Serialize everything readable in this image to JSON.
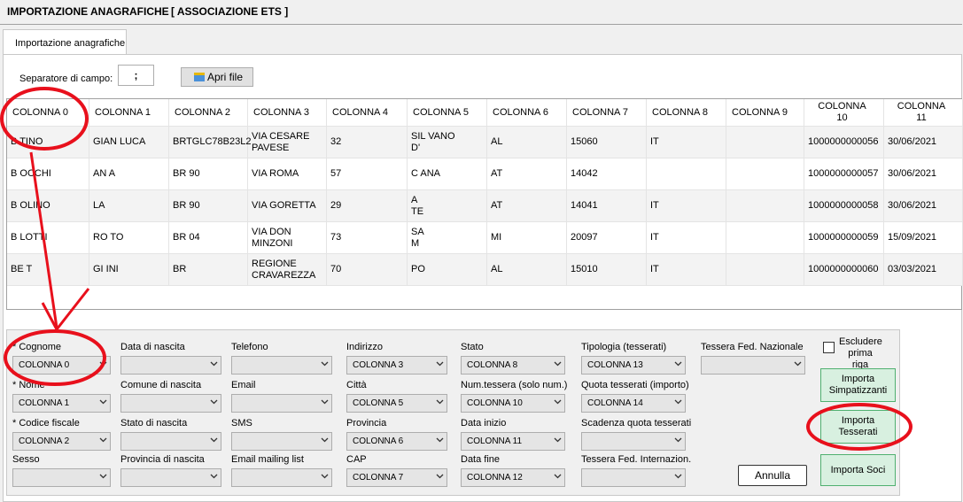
{
  "window": {
    "title": "IMPORTAZIONE ANAGRAFICHE",
    "subtitle": "[ ASSOCIAZIONE ETS ]"
  },
  "tab": {
    "label": "Importazione anagrafiche"
  },
  "toolbar": {
    "separator_label": "Separatore di campo:",
    "separator_value": ";",
    "open_file_label": "Apri file"
  },
  "grid": {
    "columns": [
      "COLONNA 0",
      "COLONNA 1",
      "COLONNA 2",
      "COLONNA 3",
      "COLONNA 4",
      "COLONNA 5",
      "COLONNA 6",
      "COLONNA 7",
      "COLONNA 8",
      "COLONNA 9",
      "COLONNA\n10",
      "COLONNA\n11"
    ],
    "rows": [
      [
        "B  TINO",
        "GIAN   LUCA",
        "BRTGLC78B23L2",
        "VIA CESARE\nPAVESE",
        "32",
        "SIL VANO\nD'",
        "AL",
        "15060",
        "IT",
        "",
        "1000000000056",
        "30/06/2021"
      ],
      [
        "B    OCCHI",
        "AN    A",
        "BR             90",
        "VIA ROMA",
        "57",
        "C          ANA",
        "AT",
        "14042",
        "",
        "",
        "1000000000057",
        "30/06/2021"
      ],
      [
        "B    OLINO",
        "LA",
        "BR             90",
        "VIA GORETTA",
        "29",
        "A\nTE",
        "AT",
        "14041",
        "IT",
        "",
        "1000000000058",
        "30/06/2021"
      ],
      [
        "B    LOTTI",
        "RO       TO",
        "BR             04",
        "VIA DON\nMINZONI",
        "73",
        "SA\nM",
        "MI",
        "20097",
        "IT",
        "",
        "1000000000059",
        "15/09/2021"
      ],
      [
        "BE  T",
        "GI     INI",
        "BR        ",
        "REGIONE\nCRAVAREZZA",
        "70",
        "PO",
        "AL",
        "15010",
        "IT",
        "",
        "1000000000060",
        "03/03/2021"
      ]
    ]
  },
  "form": {
    "fields": [
      {
        "label": "* Cognome",
        "value": "COLONNA 0"
      },
      {
        "label": "* Nome",
        "value": "COLONNA 1"
      },
      {
        "label": "* Codice fiscale",
        "value": "COLONNA 2"
      },
      {
        "label": "Sesso",
        "value": ""
      },
      {
        "label": "Data di nascita",
        "value": ""
      },
      {
        "label": "Comune di nascita",
        "value": ""
      },
      {
        "label": "Stato di nascita",
        "value": ""
      },
      {
        "label": "Provincia di nascita",
        "value": ""
      },
      {
        "label": "Telefono",
        "value": ""
      },
      {
        "label": "Email",
        "value": ""
      },
      {
        "label": "SMS",
        "value": ""
      },
      {
        "label": "Email mailing list",
        "value": ""
      },
      {
        "label": "Indirizzo",
        "value": "COLONNA 3"
      },
      {
        "label": "Città",
        "value": "COLONNA 5"
      },
      {
        "label": "Provincia",
        "value": "COLONNA 6"
      },
      {
        "label": "CAP",
        "value": "COLONNA 7"
      },
      {
        "label": "Stato",
        "value": "COLONNA 8"
      },
      {
        "label": "Num.tessera (solo num.)",
        "value": "COLONNA 10"
      },
      {
        "label": "Data inizio",
        "value": "COLONNA 11"
      },
      {
        "label": "Data fine",
        "value": "COLONNA 12"
      },
      {
        "label": "Tipologia (tesserati)",
        "value": "COLONNA 13"
      },
      {
        "label": "Quota tesserati (importo)",
        "value": "COLONNA 14"
      },
      {
        "label": "Scadenza quota tesserati",
        "value": ""
      },
      {
        "label": "Tessera Fed. Internazion.",
        "value": ""
      },
      {
        "label": "Tessera Fed. Nazionale",
        "value": ""
      }
    ],
    "exclude_first_row_label": "Escludere\nprima riga",
    "import_sympathizers_label": "Importa\nSimpatizzanti",
    "import_members_card_label": "Importa\nTesserati",
    "import_members_label": "Importa Soci",
    "cancel_label": "Annulla"
  },
  "colors": {
    "annotation": "#e8101c",
    "green_button_bg": "#d8f0e0",
    "green_button_border": "#50b070"
  }
}
